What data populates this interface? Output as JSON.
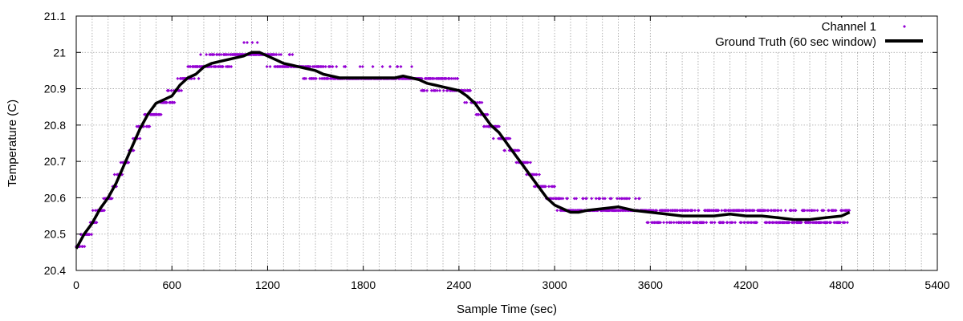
{
  "chart_data": {
    "type": "scatter",
    "xlabel": "Sample Time (sec)",
    "ylabel": "Temperature (C)",
    "xlim": [
      0,
      5400
    ],
    "ylim": [
      20.4,
      21.1
    ],
    "x_ticks": [
      0,
      600,
      1200,
      1800,
      2400,
      3000,
      3600,
      4200,
      4800,
      5400
    ],
    "y_ticks": [
      20.4,
      20.5,
      20.6,
      20.7,
      20.8,
      20.9,
      21,
      21.1
    ],
    "x_tick_labels": [
      "0",
      "600",
      "1200",
      "1800",
      "2400",
      "3000",
      "3600",
      "4200",
      "4800",
      "5400"
    ],
    "y_tick_labels": [
      "20.4",
      "20.5",
      "20.6",
      "20.7",
      "20.8",
      "20.9",
      "21",
      "21.1"
    ],
    "grid": true,
    "legend_position": "top-right",
    "series": [
      {
        "name": "Channel 1",
        "style": "points",
        "color": "#9400d3",
        "quantization": 0.033,
        "x": [
          0,
          100,
          200,
          300,
          400,
          500,
          600,
          700,
          800,
          900,
          1000,
          1100,
          1150,
          1200,
          1300,
          1400,
          1500,
          1600,
          1700,
          1800,
          1900,
          2000,
          2100,
          2200,
          2300,
          2400,
          2450,
          2500,
          2600,
          2700,
          2800,
          2900,
          3000,
          3050,
          3100,
          3200,
          3300,
          3400,
          3500,
          3600,
          3700,
          3800,
          3900,
          4000,
          4200,
          4400,
          4600,
          4800,
          4850
        ],
        "y": [
          20.46,
          20.53,
          20.6,
          20.69,
          20.79,
          20.85,
          20.88,
          20.93,
          20.97,
          20.98,
          20.99,
          21.0,
          21.0,
          20.99,
          20.97,
          20.96,
          20.95,
          20.94,
          20.93,
          20.93,
          20.93,
          20.93,
          20.93,
          20.92,
          20.91,
          20.9,
          20.89,
          20.86,
          20.8,
          20.75,
          20.7,
          20.64,
          20.6,
          20.58,
          20.57,
          20.57,
          20.57,
          20.57,
          20.57,
          20.56,
          20.55,
          20.55,
          20.55,
          20.55,
          20.55,
          20.55,
          20.54,
          20.55,
          20.56
        ]
      },
      {
        "name": "Ground Truth (60 sec window)",
        "style": "line",
        "color": "#000000",
        "x": [
          0,
          50,
          100,
          150,
          200,
          250,
          300,
          350,
          400,
          450,
          500,
          550,
          600,
          650,
          700,
          750,
          800,
          850,
          900,
          950,
          1000,
          1050,
          1100,
          1150,
          1200,
          1250,
          1300,
          1350,
          1400,
          1450,
          1500,
          1550,
          1600,
          1650,
          1700,
          1800,
          1900,
          2000,
          2050,
          2100,
          2150,
          2200,
          2250,
          2300,
          2350,
          2400,
          2450,
          2500,
          2550,
          2600,
          2650,
          2700,
          2750,
          2800,
          2850,
          2900,
          2950,
          3000,
          3050,
          3100,
          3150,
          3200,
          3300,
          3400,
          3500,
          3600,
          3700,
          3800,
          3900,
          4000,
          4100,
          4200,
          4300,
          4400,
          4500,
          4600,
          4700,
          4800,
          4850
        ],
        "y": [
          20.46,
          20.5,
          20.53,
          20.57,
          20.6,
          20.64,
          20.69,
          20.74,
          20.79,
          20.83,
          20.86,
          20.87,
          20.88,
          20.91,
          20.93,
          20.94,
          20.96,
          20.97,
          20.975,
          20.98,
          20.985,
          20.99,
          21.0,
          21.0,
          20.99,
          20.98,
          20.97,
          20.965,
          20.96,
          20.955,
          20.95,
          20.94,
          20.935,
          20.93,
          20.93,
          20.93,
          20.93,
          20.93,
          20.935,
          20.93,
          20.925,
          20.915,
          20.91,
          20.905,
          20.9,
          20.895,
          20.88,
          20.86,
          20.83,
          20.8,
          20.78,
          20.75,
          20.72,
          20.69,
          20.66,
          20.63,
          20.6,
          20.58,
          20.57,
          20.56,
          20.56,
          20.565,
          20.57,
          20.575,
          20.565,
          20.56,
          20.555,
          20.55,
          20.55,
          20.55,
          20.555,
          20.55,
          20.55,
          20.545,
          20.54,
          20.54,
          20.545,
          20.55,
          20.56
        ]
      }
    ]
  }
}
